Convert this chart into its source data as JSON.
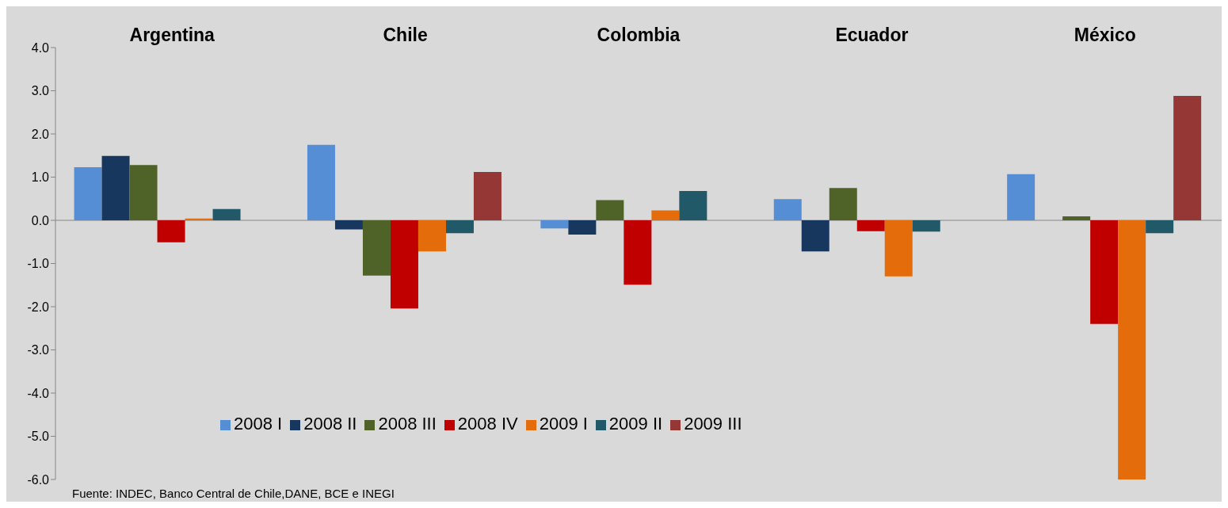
{
  "chart_data": {
    "type": "bar",
    "categories": [
      "Argentina",
      "Chile",
      "Colombia",
      "Ecuador",
      "México"
    ],
    "series": [
      {
        "name": "2008 I",
        "color": "#558ed5",
        "values": [
          1.23,
          1.75,
          -0.19,
          0.49,
          1.07
        ]
      },
      {
        "name": "2008 II",
        "color": "#17375e",
        "values": [
          1.49,
          -0.21,
          -0.33,
          -0.72,
          null
        ]
      },
      {
        "name": "2008 III",
        "color": "#4f6228",
        "values": [
          1.28,
          -1.28,
          0.47,
          0.75,
          0.09
        ]
      },
      {
        "name": "2008 IV",
        "color": "#c00000",
        "values": [
          -0.51,
          -2.04,
          -1.49,
          -0.25,
          -2.4
        ]
      },
      {
        "name": "2009 I",
        "color": "#e46c0a",
        "values": [
          0.04,
          -0.72,
          0.23,
          -1.3,
          -6.0
        ]
      },
      {
        "name": "2009 II",
        "color": "#215968",
        "values": [
          0.26,
          -0.3,
          0.68,
          -0.26,
          -0.3
        ]
      },
      {
        "name": "2009 III",
        "color": "#953735",
        "values": [
          null,
          1.12,
          null,
          null,
          2.88
        ]
      }
    ],
    "ylim": [
      -6,
      4
    ],
    "yticks": [
      {
        "value": 4,
        "label": "4.0"
      },
      {
        "value": 3,
        "label": "3.0"
      },
      {
        "value": 2,
        "label": "2.0"
      },
      {
        "value": 1,
        "label": "1.0"
      },
      {
        "value": 0,
        "label": "0.0"
      },
      {
        "value": -1,
        "label": "-1.0"
      },
      {
        "value": -2,
        "label": "-2.0"
      },
      {
        "value": -3,
        "label": "-3.0"
      },
      {
        "value": -4,
        "label": "-4.0"
      },
      {
        "value": -5,
        "label": "-5.0"
      },
      {
        "value": -6,
        "label": "-6.0"
      }
    ],
    "grid": false,
    "legend": "bottom",
    "ref_lines": [
      {
        "axis": "y",
        "value": 0,
        "color": "#868686"
      }
    ],
    "annotations": [
      "Fuente: INDEC, Banco Central de Chile,DANE, BCE e INEGI"
    ]
  }
}
